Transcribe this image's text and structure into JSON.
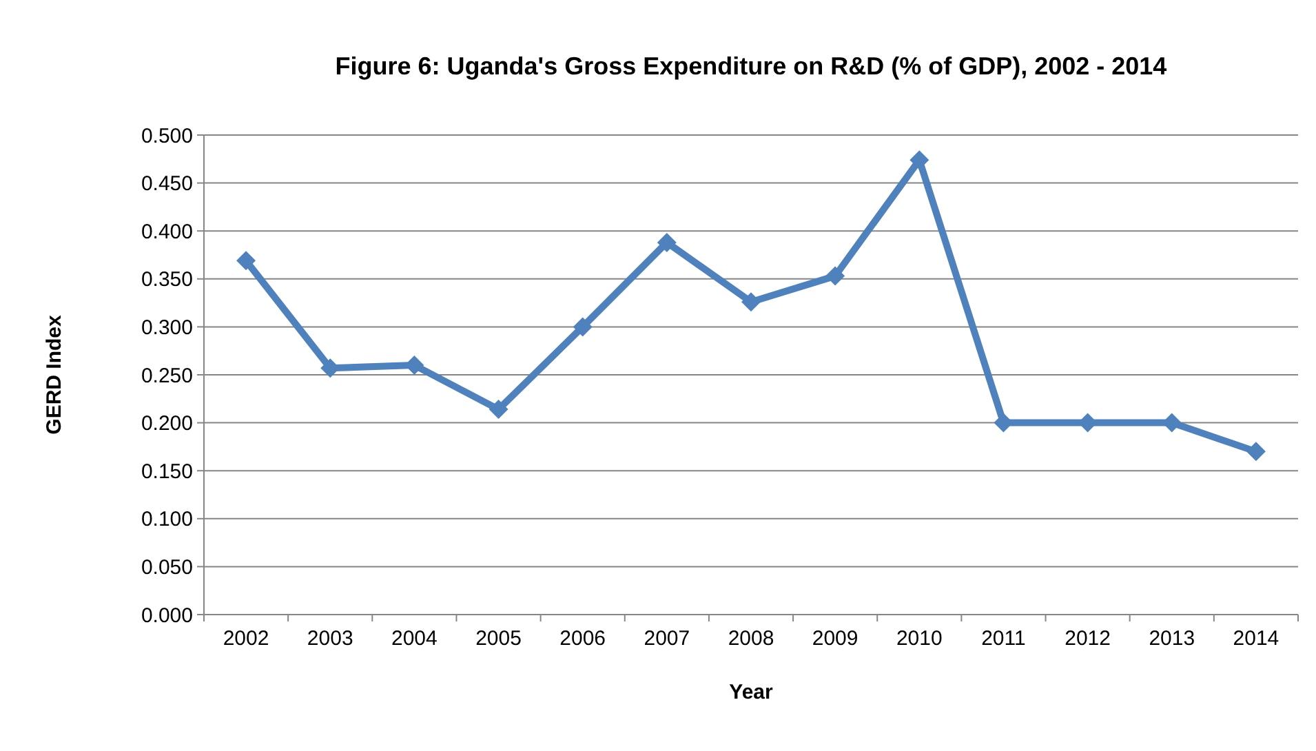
{
  "chart_data": {
    "type": "line",
    "title": "Figure 6: Uganda's Gross Expenditure on R&D (% of GDP), 2002 - 2014",
    "xlabel": "Year",
    "ylabel": "GERD Index",
    "categories": [
      "2002",
      "2003",
      "2004",
      "2005",
      "2006",
      "2007",
      "2008",
      "2009",
      "2010",
      "2011",
      "2012",
      "2013",
      "2014"
    ],
    "series": [
      {
        "color": "#4f81bd",
        "values": [
          0.369,
          0.257,
          0.26,
          0.214,
          0.3,
          0.388,
          0.326,
          0.353,
          0.474,
          0.2,
          0.2,
          0.2,
          0.17
        ]
      }
    ],
    "ylim": [
      0,
      0.5
    ],
    "yticks": [
      {
        "value": 0,
        "label": "0.000"
      },
      {
        "value": 0.05,
        "label": "0.050"
      },
      {
        "value": 0.1,
        "label": "0.100"
      },
      {
        "value": 0.15,
        "label": "0.150"
      },
      {
        "value": 0.2,
        "label": "0.200"
      },
      {
        "value": 0.25,
        "label": "0.250"
      },
      {
        "value": 0.3,
        "label": "0.300"
      },
      {
        "value": 0.35,
        "label": "0.350"
      },
      {
        "value": 0.4,
        "label": "0.400"
      },
      {
        "value": 0.45,
        "label": "0.450"
      },
      {
        "value": 0.5,
        "label": "0.500"
      }
    ],
    "grid": "y",
    "marker": "diamond",
    "line_style": "solid"
  }
}
